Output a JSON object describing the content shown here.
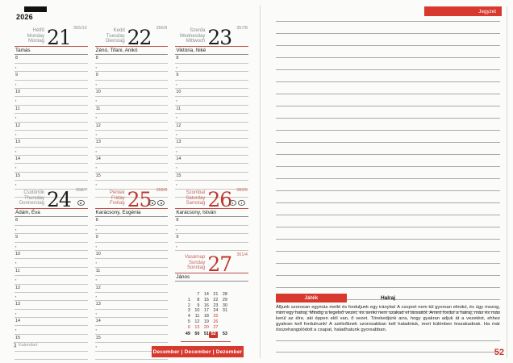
{
  "year_label": "2026",
  "page_number": "52",
  "notes_tab_label": "Jegyzet",
  "month_footer_label": "December | December | Dezember",
  "brand_label": "Kalendart",
  "accent_red": "#d8392f",
  "number_red": "#bf372c",
  "week": {
    "days": [
      {
        "names": [
          "Hétfő",
          "Monday",
          "Montag"
        ],
        "number": "21",
        "day_info": "355/10",
        "nameday": "Tamás",
        "holiday": false,
        "icons": []
      },
      {
        "names": [
          "Kedd",
          "Tuesday",
          "Dienstag"
        ],
        "number": "22",
        "day_info": "356/9",
        "nameday": "Zénó, Tifani, Anikó",
        "holiday": false,
        "icons": []
      },
      {
        "names": [
          "Szerda",
          "Wednesday",
          "Mittwoch"
        ],
        "number": "23",
        "day_info": "357/8",
        "nameday": "Viktória, Niké",
        "holiday": false,
        "icons": []
      },
      {
        "names": [
          "Csütörtök",
          "Thursday",
          "Donnerstag"
        ],
        "number": "24",
        "day_info": "358/7",
        "nameday": "Ádám, Éva",
        "holiday": false,
        "icons": [
          "moon-phase"
        ]
      },
      {
        "names": [
          "Péntek",
          "Friday",
          "Freitag"
        ],
        "number": "25",
        "day_info": "359/6",
        "nameday": "Karácsony, Eugénia",
        "holiday": true,
        "icons": [
          "moon-phase",
          "moon-phase"
        ]
      },
      {
        "names": [
          "Szombat",
          "Saturday",
          "Samstag"
        ],
        "number": "26",
        "day_info": "360/5",
        "nameday": "Karácsony, István",
        "holiday": true,
        "icons": [
          "moon-phase",
          "moon-phase"
        ]
      },
      {
        "names": [
          "Vasárnap",
          "Sunday",
          "Sonntag"
        ],
        "number": "27",
        "day_info": "361/4",
        "nameday": "János",
        "holiday": true,
        "icons": []
      }
    ],
    "hour_pattern": [
      "8",
      "▪",
      "9",
      "▪",
      "10",
      "▪",
      "11",
      "▪",
      "12",
      "▪",
      "13",
      "▪",
      "14",
      "▪",
      "15",
      "▪",
      ""
    ]
  },
  "mini_calendar": {
    "rows": [
      [
        "",
        "7",
        "14",
        "21",
        "28"
      ],
      [
        "1",
        "8",
        "15",
        "22",
        "29"
      ],
      [
        "2",
        "9",
        "16",
        "23",
        "30"
      ],
      [
        "3",
        "10",
        "17",
        "24",
        "31"
      ],
      [
        "4",
        "11",
        "18",
        "25",
        ""
      ],
      [
        "5",
        "12",
        "19",
        "26",
        ""
      ],
      [
        "6",
        "13",
        "20",
        "27",
        ""
      ]
    ],
    "red_days": [
      "6",
      "13",
      "20",
      "25",
      "26",
      "27"
    ],
    "week_numbers": [
      "49",
      "50",
      "51",
      "52",
      "53"
    ],
    "current_week": "52"
  },
  "note_block": {
    "badge_label": "Játék",
    "title": "Halraj",
    "body": "Álljunk szorosan egymás mellé és forduljunk egy irányba! A csoport nem túl gyorsan elindul, és úgy mozog, mint egy halraj. Mindig a legelső vezet, és senki nem szakad el társaitól. Amint fordul a halraj, más és más kerül az élre, aki éppen elöl van, ő vezet. Törekedjünk arra, hogy gyakran adjuk át a vezetést, ehhez gyakran kell fordulnunk! A szélsőknek szorosabban kell haladniuk, mert különben leszakadnak. Ha már összehangolódott a csapat, haladhatunk gyorsabban."
  },
  "notes_page": {
    "line_count": 25,
    "bottom_line_count": 2
  }
}
